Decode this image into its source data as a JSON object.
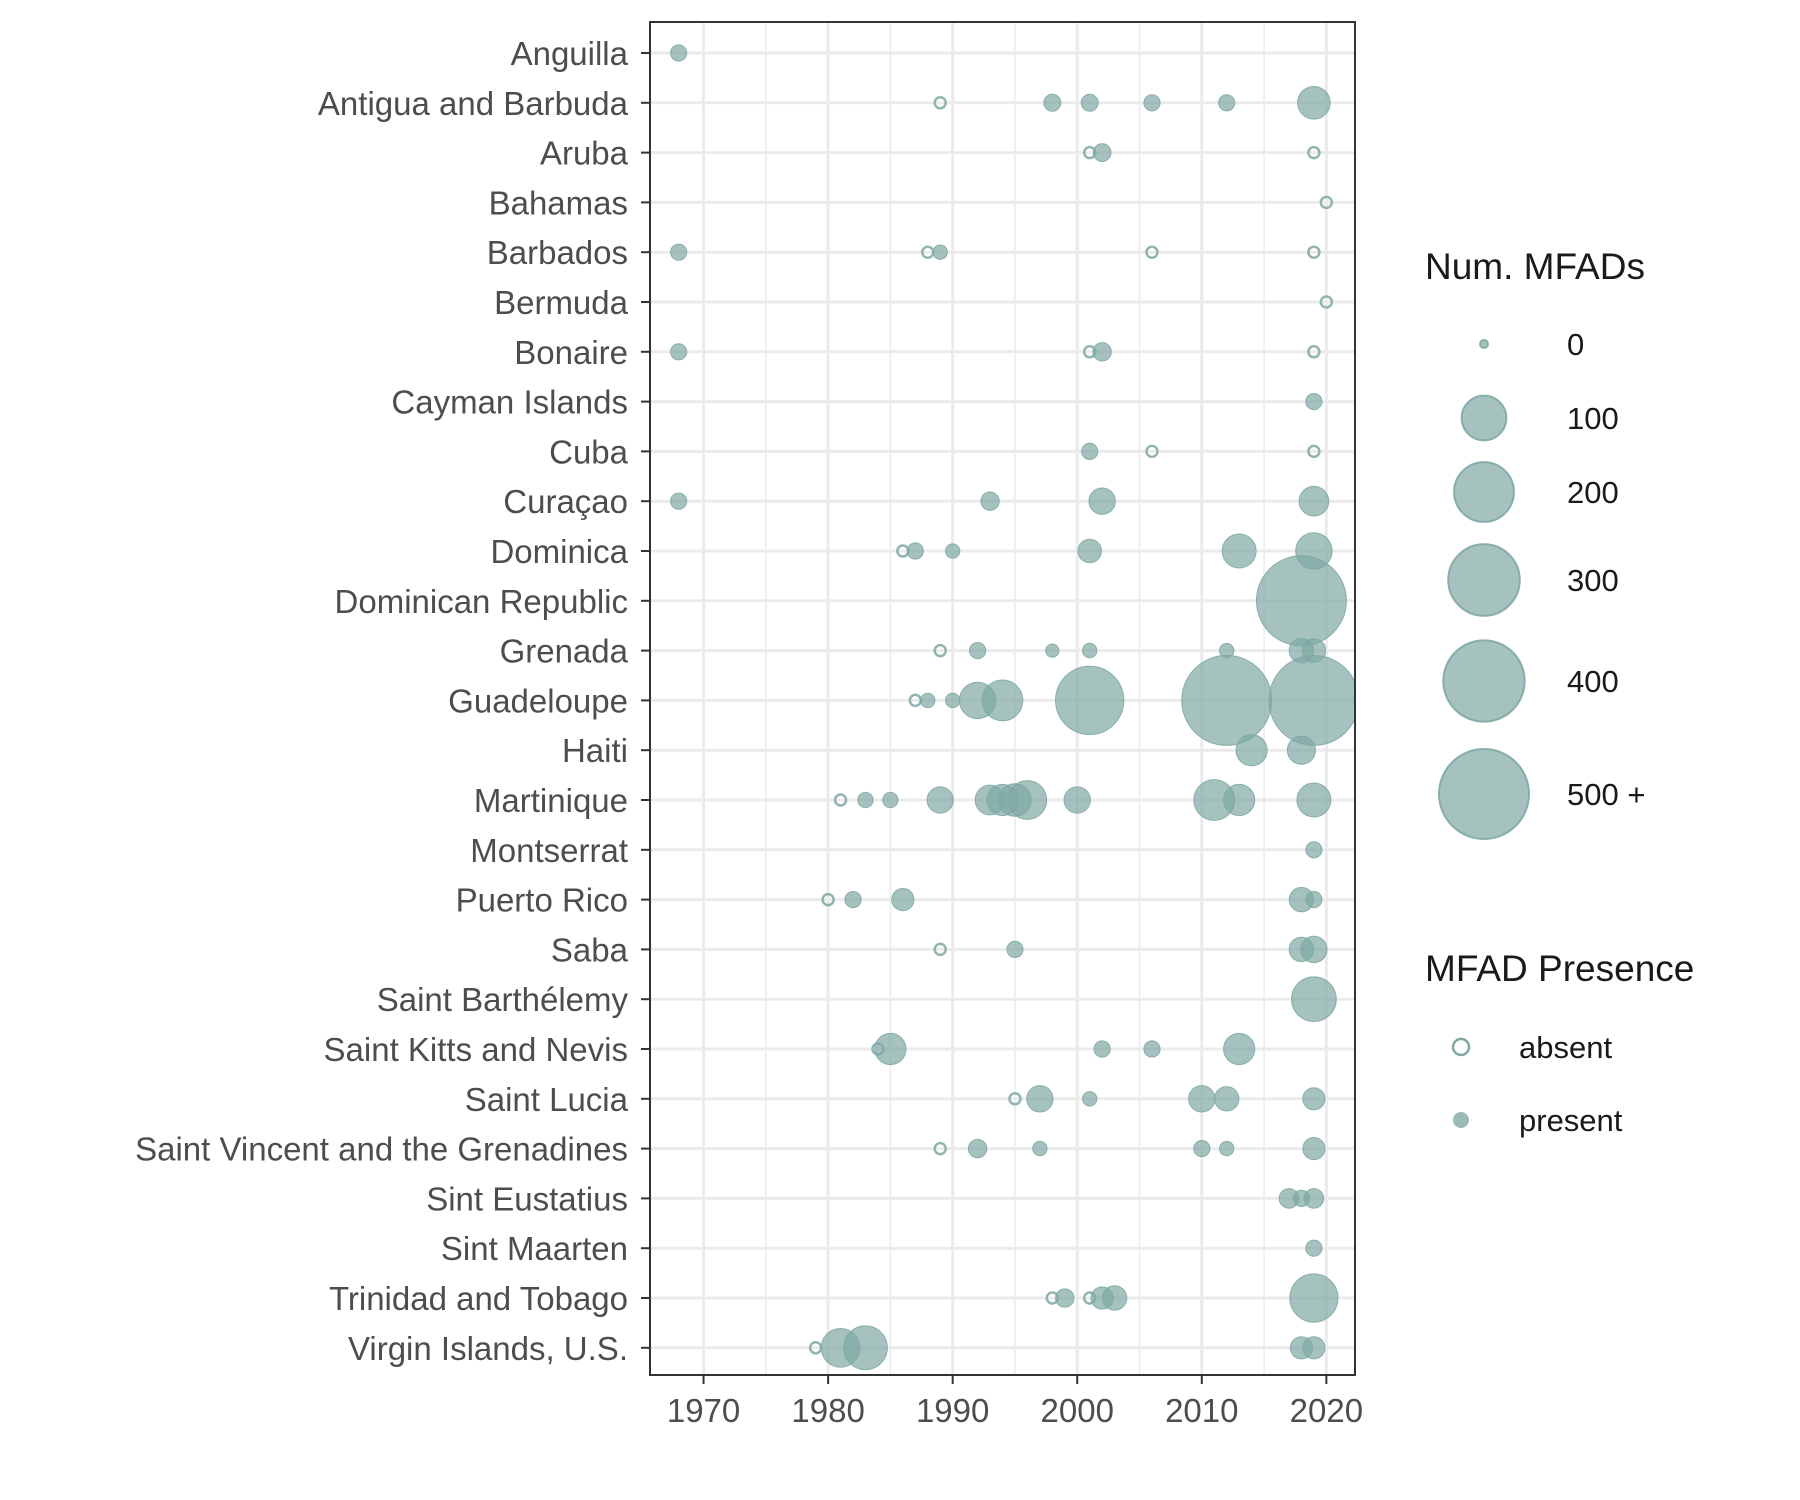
{
  "chart_data": {
    "type": "scatter",
    "title": "",
    "xlabel": "",
    "ylabel": "",
    "xlim": [
      1965.7,
      2022.3
    ],
    "x_ticks": [
      1970,
      1980,
      1990,
      2000,
      2010,
      2020
    ],
    "grid": true,
    "point_color": "#7fa8a4",
    "categories": [
      "Anguilla",
      "Antigua and Barbuda",
      "Aruba",
      "Bahamas",
      "Barbados",
      "Bermuda",
      "Bonaire",
      "Cayman Islands",
      "Cuba",
      "Curaçao",
      "Dominica",
      "Dominican Republic",
      "Grenada",
      "Guadeloupe",
      "Haiti",
      "Martinique",
      "Montserrat",
      "Puerto Rico",
      "Saba",
      "Saint Barthélemy",
      "Saint Kitts and Nevis",
      "Saint Lucia",
      "Saint Vincent and the Grenadines",
      "Sint Eustatius",
      "Sint Maarten",
      "Trinidad and Tobago",
      "Virgin Islands, U.S."
    ],
    "points": [
      {
        "country": "Anguilla",
        "year": 1968,
        "mfads": 5,
        "presence": "present"
      },
      {
        "country": "Antigua and Barbuda",
        "year": 1989,
        "mfads": 0,
        "presence": "absent"
      },
      {
        "country": "Antigua and Barbuda",
        "year": 1998,
        "mfads": 6,
        "presence": "present"
      },
      {
        "country": "Antigua and Barbuda",
        "year": 2001,
        "mfads": 6,
        "presence": "present"
      },
      {
        "country": "Antigua and Barbuda",
        "year": 2006,
        "mfads": 5,
        "presence": "present"
      },
      {
        "country": "Antigua and Barbuda",
        "year": 2012,
        "mfads": 5,
        "presence": "present"
      },
      {
        "country": "Antigua and Barbuda",
        "year": 2019,
        "mfads": 45,
        "presence": "present"
      },
      {
        "country": "Aruba",
        "year": 2001,
        "mfads": 0,
        "presence": "absent"
      },
      {
        "country": "Aruba",
        "year": 2002,
        "mfads": 7,
        "presence": "present"
      },
      {
        "country": "Aruba",
        "year": 2019,
        "mfads": 0,
        "presence": "absent"
      },
      {
        "country": "Bahamas",
        "year": 2020,
        "mfads": 0,
        "presence": "absent"
      },
      {
        "country": "Barbados",
        "year": 1968,
        "mfads": 5,
        "presence": "present"
      },
      {
        "country": "Barbados",
        "year": 1988,
        "mfads": 0,
        "presence": "absent"
      },
      {
        "country": "Barbados",
        "year": 1989,
        "mfads": 3,
        "presence": "present"
      },
      {
        "country": "Barbados",
        "year": 2006,
        "mfads": 0,
        "presence": "absent"
      },
      {
        "country": "Barbados",
        "year": 2019,
        "mfads": 0,
        "presence": "absent"
      },
      {
        "country": "Bermuda",
        "year": 2020,
        "mfads": 0,
        "presence": "absent"
      },
      {
        "country": "Bonaire",
        "year": 1968,
        "mfads": 5,
        "presence": "present"
      },
      {
        "country": "Bonaire",
        "year": 2001,
        "mfads": 0,
        "presence": "absent"
      },
      {
        "country": "Bonaire",
        "year": 2002,
        "mfads": 8,
        "presence": "present"
      },
      {
        "country": "Bonaire",
        "year": 2019,
        "mfads": 0,
        "presence": "absent"
      },
      {
        "country": "Cayman Islands",
        "year": 2019,
        "mfads": 5,
        "presence": "present"
      },
      {
        "country": "Cuba",
        "year": 2001,
        "mfads": 5,
        "presence": "present"
      },
      {
        "country": "Cuba",
        "year": 2006,
        "mfads": 0,
        "presence": "absent"
      },
      {
        "country": "Cuba",
        "year": 2019,
        "mfads": 0,
        "presence": "absent"
      },
      {
        "country": "Curaçao",
        "year": 1968,
        "mfads": 5,
        "presence": "present"
      },
      {
        "country": "Curaçao",
        "year": 1993,
        "mfads": 8,
        "presence": "present"
      },
      {
        "country": "Curaçao",
        "year": 2002,
        "mfads": 25,
        "presence": "present"
      },
      {
        "country": "Curaçao",
        "year": 2019,
        "mfads": 35,
        "presence": "present"
      },
      {
        "country": "Dominica",
        "year": 1986,
        "mfads": 0,
        "presence": "absent"
      },
      {
        "country": "Dominica",
        "year": 1987,
        "mfads": 5,
        "presence": "present"
      },
      {
        "country": "Dominica",
        "year": 1990,
        "mfads": 3,
        "presence": "present"
      },
      {
        "country": "Dominica",
        "year": 2001,
        "mfads": 18,
        "presence": "present"
      },
      {
        "country": "Dominica",
        "year": 2013,
        "mfads": 50,
        "presence": "present"
      },
      {
        "country": "Dominica",
        "year": 2019,
        "mfads": 60,
        "presence": "present"
      },
      {
        "country": "Dominican Republic",
        "year": 2018,
        "mfads": 500,
        "presence": "present"
      },
      {
        "country": "Grenada",
        "year": 1989,
        "mfads": 0,
        "presence": "absent"
      },
      {
        "country": "Grenada",
        "year": 1992,
        "mfads": 5,
        "presence": "present"
      },
      {
        "country": "Grenada",
        "year": 1998,
        "mfads": 2,
        "presence": "present"
      },
      {
        "country": "Grenada",
        "year": 2001,
        "mfads": 3,
        "presence": "present"
      },
      {
        "country": "Grenada",
        "year": 2012,
        "mfads": 3,
        "presence": "present"
      },
      {
        "country": "Grenada",
        "year": 2018,
        "mfads": 20,
        "presence": "present"
      },
      {
        "country": "Grenada",
        "year": 2019,
        "mfads": 18,
        "presence": "present"
      },
      {
        "country": "Guadeloupe",
        "year": 1987,
        "mfads": 0,
        "presence": "absent"
      },
      {
        "country": "Guadeloupe",
        "year": 1988,
        "mfads": 3,
        "presence": "present"
      },
      {
        "country": "Guadeloupe",
        "year": 1990,
        "mfads": 3,
        "presence": "present"
      },
      {
        "country": "Guadeloupe",
        "year": 1992,
        "mfads": 60,
        "presence": "present"
      },
      {
        "country": "Guadeloupe",
        "year": 1994,
        "mfads": 80,
        "presence": "present"
      },
      {
        "country": "Guadeloupe",
        "year": 2001,
        "mfads": 270,
        "presence": "present"
      },
      {
        "country": "Guadeloupe",
        "year": 2012,
        "mfads": 500,
        "presence": "present"
      },
      {
        "country": "Guadeloupe",
        "year": 2019,
        "mfads": 500,
        "presence": "present"
      },
      {
        "country": "Haiti",
        "year": 2014,
        "mfads": 40,
        "presence": "present"
      },
      {
        "country": "Haiti",
        "year": 2018,
        "mfads": 30,
        "presence": "present"
      },
      {
        "country": "Martinique",
        "year": 1981,
        "mfads": 0,
        "presence": "absent"
      },
      {
        "country": "Martinique",
        "year": 1983,
        "mfads": 4,
        "presence": "present"
      },
      {
        "country": "Martinique",
        "year": 1985,
        "mfads": 4,
        "presence": "present"
      },
      {
        "country": "Martinique",
        "year": 1989,
        "mfads": 25,
        "presence": "present"
      },
      {
        "country": "Martinique",
        "year": 1993,
        "mfads": 35,
        "presence": "present"
      },
      {
        "country": "Martinique",
        "year": 1994,
        "mfads": 40,
        "presence": "present"
      },
      {
        "country": "Martinique",
        "year": 1995,
        "mfads": 45,
        "presence": "present"
      },
      {
        "country": "Martinique",
        "year": 1996,
        "mfads": 70,
        "presence": "present"
      },
      {
        "country": "Martinique",
        "year": 2000,
        "mfads": 25,
        "presence": "present"
      },
      {
        "country": "Martinique",
        "year": 2011,
        "mfads": 80,
        "presence": "present"
      },
      {
        "country": "Martinique",
        "year": 2013,
        "mfads": 40,
        "presence": "present"
      },
      {
        "country": "Martinique",
        "year": 2019,
        "mfads": 50,
        "presence": "present"
      },
      {
        "country": "Montserrat",
        "year": 2019,
        "mfads": 5,
        "presence": "present"
      },
      {
        "country": "Puerto Rico",
        "year": 1980,
        "mfads": 0,
        "presence": "absent"
      },
      {
        "country": "Puerto Rico",
        "year": 1982,
        "mfads": 5,
        "presence": "present"
      },
      {
        "country": "Puerto Rico",
        "year": 1986,
        "mfads": 15,
        "presence": "present"
      },
      {
        "country": "Puerto Rico",
        "year": 2018,
        "mfads": 20,
        "presence": "present"
      },
      {
        "country": "Puerto Rico",
        "year": 2019,
        "mfads": 5,
        "presence": "present"
      },
      {
        "country": "Saba",
        "year": 1989,
        "mfads": 0,
        "presence": "absent"
      },
      {
        "country": "Saba",
        "year": 1995,
        "mfads": 5,
        "presence": "present"
      },
      {
        "country": "Saba",
        "year": 2018,
        "mfads": 20,
        "presence": "present"
      },
      {
        "country": "Saba",
        "year": 2019,
        "mfads": 25,
        "presence": "present"
      },
      {
        "country": "Saint Barthélemy",
        "year": 2019,
        "mfads": 100,
        "presence": "present"
      },
      {
        "country": "Saint Kitts and Nevis",
        "year": 1984,
        "mfads": 0,
        "presence": "absent"
      },
      {
        "country": "Saint Kitts and Nevis",
        "year": 1985,
        "mfads": 40,
        "presence": "present"
      },
      {
        "country": "Saint Kitts and Nevis",
        "year": 2002,
        "mfads": 5,
        "presence": "present"
      },
      {
        "country": "Saint Kitts and Nevis",
        "year": 2006,
        "mfads": 5,
        "presence": "present"
      },
      {
        "country": "Saint Kitts and Nevis",
        "year": 2013,
        "mfads": 40,
        "presence": "present"
      },
      {
        "country": "Saint Lucia",
        "year": 1995,
        "mfads": 0,
        "presence": "absent"
      },
      {
        "country": "Saint Lucia",
        "year": 1997,
        "mfads": 25,
        "presence": "present"
      },
      {
        "country": "Saint Lucia",
        "year": 2001,
        "mfads": 3,
        "presence": "present"
      },
      {
        "country": "Saint Lucia",
        "year": 2010,
        "mfads": 25,
        "presence": "present"
      },
      {
        "country": "Saint Lucia",
        "year": 2012,
        "mfads": 20,
        "presence": "present"
      },
      {
        "country": "Saint Lucia",
        "year": 2019,
        "mfads": 15,
        "presence": "present"
      },
      {
        "country": "Saint Vincent and the Grenadines",
        "year": 1989,
        "mfads": 0,
        "presence": "absent"
      },
      {
        "country": "Saint Vincent and the Grenadines",
        "year": 1992,
        "mfads": 8,
        "presence": "present"
      },
      {
        "country": "Saint Vincent and the Grenadines",
        "year": 1997,
        "mfads": 3,
        "presence": "present"
      },
      {
        "country": "Saint Vincent and the Grenadines",
        "year": 2010,
        "mfads": 5,
        "presence": "present"
      },
      {
        "country": "Saint Vincent and the Grenadines",
        "year": 2012,
        "mfads": 3,
        "presence": "present"
      },
      {
        "country": "Saint Vincent and the Grenadines",
        "year": 2019,
        "mfads": 15,
        "presence": "present"
      },
      {
        "country": "Sint Eustatius",
        "year": 2017,
        "mfads": 10,
        "presence": "present"
      },
      {
        "country": "Sint Eustatius",
        "year": 2018,
        "mfads": 5,
        "presence": "present"
      },
      {
        "country": "Sint Eustatius",
        "year": 2019,
        "mfads": 10,
        "presence": "present"
      },
      {
        "country": "Sint Maarten",
        "year": 2019,
        "mfads": 5,
        "presence": "present"
      },
      {
        "country": "Trinidad and Tobago",
        "year": 1998,
        "mfads": 0,
        "presence": "absent"
      },
      {
        "country": "Trinidad and Tobago",
        "year": 1999,
        "mfads": 8,
        "presence": "present"
      },
      {
        "country": "Trinidad and Tobago",
        "year": 2001,
        "mfads": 0,
        "presence": "absent"
      },
      {
        "country": "Trinidad and Tobago",
        "year": 2002,
        "mfads": 15,
        "presence": "present"
      },
      {
        "country": "Trinidad and Tobago",
        "year": 2003,
        "mfads": 20,
        "presence": "present"
      },
      {
        "country": "Trinidad and Tobago",
        "year": 2019,
        "mfads": 120,
        "presence": "present"
      },
      {
        "country": "Virgin Islands, U.S.",
        "year": 1979,
        "mfads": 0,
        "presence": "absent"
      },
      {
        "country": "Virgin Islands, U.S.",
        "year": 1981,
        "mfads": 70,
        "presence": "present"
      },
      {
        "country": "Virgin Islands, U.S.",
        "year": 1983,
        "mfads": 95,
        "presence": "present"
      },
      {
        "country": "Virgin Islands, U.S.",
        "year": 2018,
        "mfads": 15,
        "presence": "present"
      },
      {
        "country": "Virgin Islands, U.S.",
        "year": 2019,
        "mfads": 15,
        "presence": "present"
      }
    ],
    "legend_size": {
      "title": "Num. MFADs",
      "entries": [
        {
          "label": "0",
          "value": 0
        },
        {
          "label": "100",
          "value": 100
        },
        {
          "label": "200",
          "value": 200
        },
        {
          "label": "300",
          "value": 300
        },
        {
          "label": "400",
          "value": 400
        },
        {
          "label": "500 +",
          "value": 500
        }
      ]
    },
    "legend_presence": {
      "title": "MFAD Presence",
      "entries": [
        {
          "label": "absent",
          "presence": "absent"
        },
        {
          "label": "present",
          "presence": "present"
        }
      ]
    },
    "legend_placement": "right"
  }
}
